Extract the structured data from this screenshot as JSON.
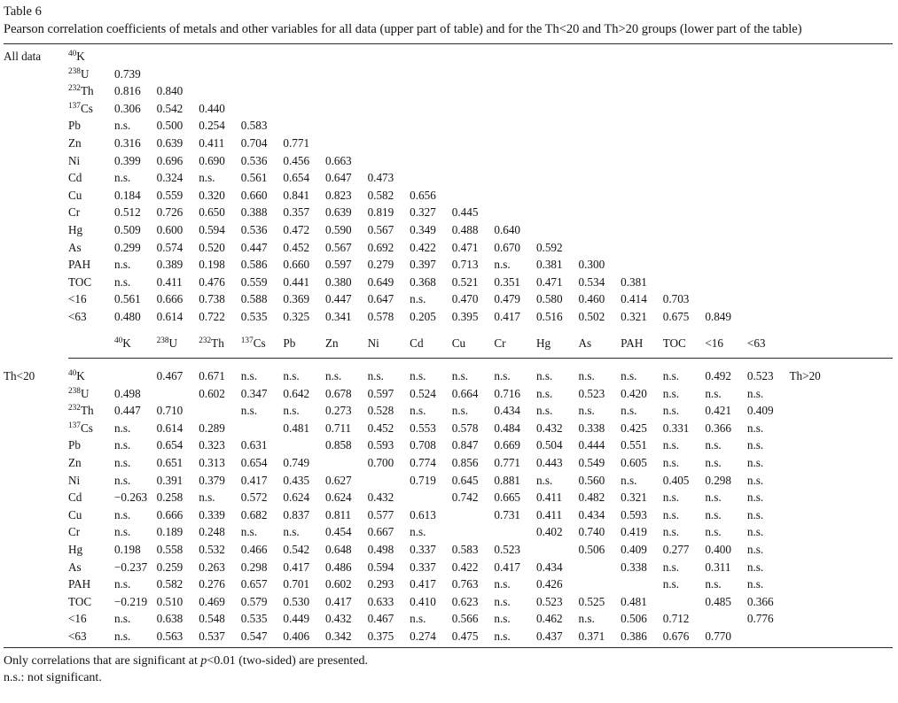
{
  "caption": {
    "number": "Table 6",
    "text": "Pearson correlation coefficients of metals and other variables for all data (upper part of table) and for the Th<20 and Th>20 groups (lower part of the table)"
  },
  "table": {
    "group_labels": {
      "upper": "All data",
      "lower_left": "Th<20",
      "lower_right": "Th>20"
    },
    "columns": [
      {
        "sup": "40",
        "base": "K"
      },
      {
        "sup": "238",
        "base": "U"
      },
      {
        "sup": "232",
        "base": "Th"
      },
      {
        "sup": "137",
        "base": "Cs"
      },
      {
        "sup": "",
        "base": "Pb"
      },
      {
        "sup": "",
        "base": "Zn"
      },
      {
        "sup": "",
        "base": "Ni"
      },
      {
        "sup": "",
        "base": "Cd"
      },
      {
        "sup": "",
        "base": "Cu"
      },
      {
        "sup": "",
        "base": "Cr"
      },
      {
        "sup": "",
        "base": "Hg"
      },
      {
        "sup": "",
        "base": "As"
      },
      {
        "sup": "",
        "base": "PAH"
      },
      {
        "sup": "",
        "base": "TOC"
      },
      {
        "sup": "",
        "base": "<16"
      },
      {
        "sup": "",
        "base": "<63"
      }
    ],
    "upper_rows": [
      {
        "sup": "40",
        "base": "K",
        "values": []
      },
      {
        "sup": "238",
        "base": "U",
        "values": [
          "0.739"
        ]
      },
      {
        "sup": "232",
        "base": "Th",
        "values": [
          "0.816",
          "0.840"
        ]
      },
      {
        "sup": "137",
        "base": "Cs",
        "values": [
          "0.306",
          "0.542",
          "0.440"
        ]
      },
      {
        "sup": "",
        "base": "Pb",
        "values": [
          "n.s.",
          "0.500",
          "0.254",
          "0.583"
        ]
      },
      {
        "sup": "",
        "base": "Zn",
        "values": [
          "0.316",
          "0.639",
          "0.411",
          "0.704",
          "0.771"
        ]
      },
      {
        "sup": "",
        "base": "Ni",
        "values": [
          "0.399",
          "0.696",
          "0.690",
          "0.536",
          "0.456",
          "0.663"
        ]
      },
      {
        "sup": "",
        "base": "Cd",
        "values": [
          "n.s.",
          "0.324",
          "n.s.",
          "0.561",
          "0.654",
          "0.647",
          "0.473"
        ]
      },
      {
        "sup": "",
        "base": "Cu",
        "values": [
          "0.184",
          "0.559",
          "0.320",
          "0.660",
          "0.841",
          "0.823",
          "0.582",
          "0.656"
        ]
      },
      {
        "sup": "",
        "base": "Cr",
        "values": [
          "0.512",
          "0.726",
          "0.650",
          "0.388",
          "0.357",
          "0.639",
          "0.819",
          "0.327",
          "0.445"
        ]
      },
      {
        "sup": "",
        "base": "Hg",
        "values": [
          "0.509",
          "0.600",
          "0.594",
          "0.536",
          "0.472",
          "0.590",
          "0.567",
          "0.349",
          "0.488",
          "0.640"
        ]
      },
      {
        "sup": "",
        "base": "As",
        "values": [
          "0.299",
          "0.574",
          "0.520",
          "0.447",
          "0.452",
          "0.567",
          "0.692",
          "0.422",
          "0.471",
          "0.670",
          "0.592"
        ]
      },
      {
        "sup": "",
        "base": "PAH",
        "values": [
          "n.s.",
          "0.389",
          "0.198",
          "0.586",
          "0.660",
          "0.597",
          "0.279",
          "0.397",
          "0.713",
          "n.s.",
          "0.381",
          "0.300"
        ]
      },
      {
        "sup": "",
        "base": "TOC",
        "values": [
          "n.s.",
          "0.411",
          "0.476",
          "0.559",
          "0.441",
          "0.380",
          "0.649",
          "0.368",
          "0.521",
          "0.351",
          "0.471",
          "0.534",
          "0.381"
        ]
      },
      {
        "sup": "",
        "base": "<16",
        "values": [
          "0.561",
          "0.666",
          "0.738",
          "0.588",
          "0.369",
          "0.447",
          "0.647",
          "n.s.",
          "0.470",
          "0.479",
          "0.580",
          "0.460",
          "0.414",
          "0.703"
        ]
      },
      {
        "sup": "",
        "base": "<63",
        "values": [
          "0.480",
          "0.614",
          "0.722",
          "0.535",
          "0.325",
          "0.341",
          "0.578",
          "0.205",
          "0.395",
          "0.417",
          "0.516",
          "0.502",
          "0.321",
          "0.675",
          "0.849"
        ]
      }
    ],
    "lower_rows": [
      {
        "sup": "40",
        "base": "K",
        "values": [
          "",
          "0.467",
          "0.671",
          "n.s.",
          "n.s.",
          "n.s.",
          "n.s.",
          "n.s.",
          "n.s.",
          "n.s.",
          "n.s.",
          "n.s.",
          "n.s.",
          "n.s.",
          "0.492",
          "0.523"
        ]
      },
      {
        "sup": "238",
        "base": "U",
        "values": [
          "0.498",
          "",
          "0.602",
          "0.347",
          "0.642",
          "0.678",
          "0.597",
          "0.524",
          "0.664",
          "0.716",
          "n.s.",
          "0.523",
          "0.420",
          "n.s.",
          "n.s.",
          "n.s."
        ]
      },
      {
        "sup": "232",
        "base": "Th",
        "values": [
          "0.447",
          "0.710",
          "",
          "n.s.",
          "n.s.",
          "0.273",
          "0.528",
          "n.s.",
          "n.s.",
          "0.434",
          "n.s.",
          "n.s.",
          "n.s.",
          "n.s.",
          "0.421",
          "0.409"
        ]
      },
      {
        "sup": "137",
        "base": "Cs",
        "values": [
          "n.s.",
          "0.614",
          "0.289",
          "",
          "0.481",
          "0.711",
          "0.452",
          "0.553",
          "0.578",
          "0.484",
          "0.432",
          "0.338",
          "0.425",
          "0.331",
          "0.366",
          "n.s."
        ]
      },
      {
        "sup": "",
        "base": "Pb",
        "values": [
          "n.s.",
          "0.654",
          "0.323",
          "0.631",
          "",
          "0.858",
          "0.593",
          "0.708",
          "0.847",
          "0.669",
          "0.504",
          "0.444",
          "0.551",
          "n.s.",
          "n.s.",
          "n.s."
        ]
      },
      {
        "sup": "",
        "base": "Zn",
        "values": [
          "n.s.",
          "0.651",
          "0.313",
          "0.654",
          "0.749",
          "",
          "0.700",
          "0.774",
          "0.856",
          "0.771",
          "0.443",
          "0.549",
          "0.605",
          "n.s.",
          "n.s.",
          "n.s."
        ]
      },
      {
        "sup": "",
        "base": "Ni",
        "values": [
          "n.s.",
          "0.391",
          "0.379",
          "0.417",
          "0.435",
          "0.627",
          "",
          "0.719",
          "0.645",
          "0.881",
          "n.s.",
          "0.560",
          "n.s.",
          "0.405",
          "0.298",
          "n.s."
        ]
      },
      {
        "sup": "",
        "base": "Cd",
        "values": [
          "−0.263",
          "0.258",
          "n.s.",
          "0.572",
          "0.624",
          "0.624",
          "0.432",
          "",
          "0.742",
          "0.665",
          "0.411",
          "0.482",
          "0.321",
          "n.s.",
          "n.s.",
          "n.s."
        ]
      },
      {
        "sup": "",
        "base": "Cu",
        "values": [
          "n.s.",
          "0.666",
          "0.339",
          "0.682",
          "0.837",
          "0.811",
          "0.577",
          "0.613",
          "",
          "0.731",
          "0.411",
          "0.434",
          "0.593",
          "n.s.",
          "n.s.",
          "n.s."
        ]
      },
      {
        "sup": "",
        "base": "Cr",
        "values": [
          "n.s.",
          "0.189",
          "0.248",
          "n.s.",
          "n.s.",
          "0.454",
          "0.667",
          "n.s.",
          "",
          "",
          "0.402",
          "0.740",
          "0.419",
          "n.s.",
          "n.s.",
          "n.s."
        ]
      },
      {
        "sup": "",
        "base": "Hg",
        "values": [
          "0.198",
          "0.558",
          "0.532",
          "0.466",
          "0.542",
          "0.648",
          "0.498",
          "0.337",
          "0.583",
          "0.523",
          "",
          "0.506",
          "0.409",
          "0.277",
          "0.400",
          "n.s."
        ]
      },
      {
        "sup": "",
        "base": "As",
        "values": [
          "−0.237",
          "0.259",
          "0.263",
          "0.298",
          "0.417",
          "0.486",
          "0.594",
          "0.337",
          "0.422",
          "0.417",
          "0.434",
          "",
          "0.338",
          "n.s.",
          "0.311",
          "n.s."
        ]
      },
      {
        "sup": "",
        "base": "PAH",
        "values": [
          "n.s.",
          "0.582",
          "0.276",
          "0.657",
          "0.701",
          "0.602",
          "0.293",
          "0.417",
          "0.763",
          "n.s.",
          "0.426",
          "",
          "",
          "n.s.",
          "n.s.",
          "n.s."
        ]
      },
      {
        "sup": "",
        "base": "TOC",
        "values": [
          "−0.219",
          "0.510",
          "0.469",
          "0.579",
          "0.530",
          "0.417",
          "0.633",
          "0.410",
          "0.623",
          "n.s.",
          "0.523",
          "0.525",
          "0.481",
          "",
          "0.485",
          "0.366"
        ]
      },
      {
        "sup": "",
        "base": "<16",
        "values": [
          "n.s.",
          "0.638",
          "0.548",
          "0.535",
          "0.449",
          "0.432",
          "0.467",
          "n.s.",
          "0.566",
          "n.s.",
          "0.462",
          "n.s.",
          "0.506",
          "0.712",
          "",
          "0.776"
        ]
      },
      {
        "sup": "",
        "base": "<63",
        "values": [
          "n.s.",
          "0.563",
          "0.537",
          "0.547",
          "0.406",
          "0.342",
          "0.375",
          "0.274",
          "0.475",
          "n.s.",
          "0.437",
          "0.371",
          "0.386",
          "0.676",
          "0.770",
          ""
        ]
      }
    ]
  },
  "footnotes": {
    "line1_pre": "Only correlations that are significant at ",
    "line1_italic": "p",
    "line1_post": "<0.01 (two-sided) are presented.",
    "line2": "n.s.: not significant."
  }
}
